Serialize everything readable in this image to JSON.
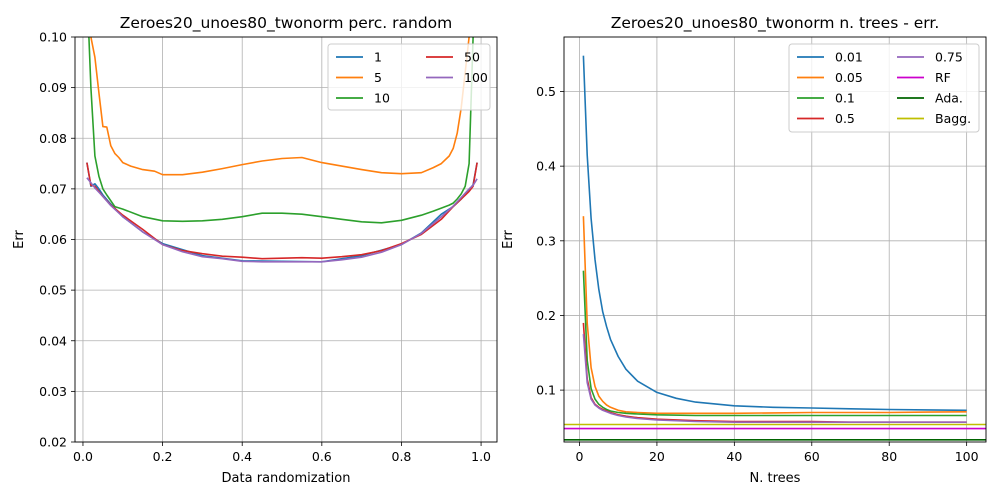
{
  "chart_data": [
    {
      "type": "line",
      "title": "Zeroes20_unoes80_twonorm perc. random",
      "xlabel": "Data randomization",
      "ylabel": "Err",
      "xlim": [
        -0.02,
        1.04
      ],
      "ylim": [
        0.02,
        0.1
      ],
      "xticks": [
        0.0,
        0.2,
        0.4,
        0.6,
        0.8,
        1.0
      ],
      "xtick_labels": [
        "0.0",
        "0.2",
        "0.4",
        "0.6",
        "0.8",
        "1.0"
      ],
      "yticks": [
        0.02,
        0.03,
        0.04,
        0.05,
        0.06,
        0.07,
        0.08,
        0.09,
        0.1
      ],
      "ytick_labels": [
        "0.02",
        "0.03",
        "0.04",
        "0.05",
        "0.06",
        "0.07",
        "0.08",
        "0.09",
        "0.10"
      ],
      "grid": true,
      "legend_position": "top-right",
      "legend_columns": 2,
      "series": [
        {
          "name": "1",
          "color": "#1f77b4",
          "x": [
            0.01,
            0.02,
            0.03,
            0.04,
            0.05,
            0.07,
            0.1,
            0.15,
            0.2,
            0.3,
            0.4,
            0.5,
            0.6,
            0.7,
            0.8,
            0.85,
            0.9,
            0.93,
            0.95,
            0.97,
            0.98,
            0.99
          ],
          "y": [
            0.0752,
            0.0705,
            0.071,
            0.07,
            0.0688,
            0.067,
            0.0645,
            0.0615,
            0.0592,
            0.0568,
            0.0558,
            0.0557,
            0.0556,
            0.0568,
            0.059,
            0.0613,
            0.065,
            0.0665,
            0.068,
            0.0698,
            0.0708,
            0.0752
          ]
        },
        {
          "name": "5",
          "color": "#ff7f0e",
          "x": [
            0.02,
            0.03,
            0.04,
            0.05,
            0.06,
            0.07,
            0.08,
            0.09,
            0.1,
            0.12,
            0.15,
            0.18,
            0.2,
            0.25,
            0.3,
            0.35,
            0.4,
            0.45,
            0.5,
            0.55,
            0.6,
            0.65,
            0.7,
            0.75,
            0.8,
            0.85,
            0.88,
            0.9,
            0.92,
            0.93,
            0.94,
            0.95,
            0.96,
            0.97
          ],
          "y": [
            0.1,
            0.096,
            0.089,
            0.0823,
            0.0822,
            0.0785,
            0.077,
            0.0762,
            0.0752,
            0.0745,
            0.0738,
            0.0735,
            0.0728,
            0.0728,
            0.0733,
            0.074,
            0.0748,
            0.0755,
            0.076,
            0.0762,
            0.0752,
            0.0745,
            0.0738,
            0.0732,
            0.073,
            0.0732,
            0.0742,
            0.075,
            0.0765,
            0.078,
            0.081,
            0.086,
            0.093,
            0.1
          ]
        },
        {
          "name": "10",
          "color": "#2ca02c",
          "x": [
            0.015,
            0.02,
            0.03,
            0.04,
            0.05,
            0.06,
            0.08,
            0.1,
            0.15,
            0.2,
            0.25,
            0.3,
            0.35,
            0.4,
            0.45,
            0.5,
            0.55,
            0.6,
            0.65,
            0.7,
            0.75,
            0.8,
            0.85,
            0.88,
            0.9,
            0.92,
            0.93,
            0.94,
            0.95,
            0.96,
            0.97,
            0.98
          ],
          "y": [
            0.1,
            0.09,
            0.0765,
            0.0725,
            0.07,
            0.0688,
            0.0665,
            0.066,
            0.0645,
            0.0637,
            0.0636,
            0.0637,
            0.064,
            0.0645,
            0.0652,
            0.0652,
            0.065,
            0.0645,
            0.064,
            0.0635,
            0.0633,
            0.0638,
            0.0648,
            0.0656,
            0.0662,
            0.0668,
            0.0672,
            0.068,
            0.069,
            0.0705,
            0.075,
            0.1
          ]
        },
        {
          "name": "50",
          "color": "#d62728",
          "x": [
            0.01,
            0.02,
            0.03,
            0.05,
            0.07,
            0.1,
            0.15,
            0.2,
            0.25,
            0.3,
            0.35,
            0.4,
            0.45,
            0.5,
            0.55,
            0.6,
            0.65,
            0.7,
            0.75,
            0.8,
            0.85,
            0.9,
            0.93,
            0.95,
            0.97,
            0.98,
            0.99
          ],
          "y": [
            0.0752,
            0.0707,
            0.0705,
            0.0685,
            0.0668,
            0.0648,
            0.062,
            0.059,
            0.0578,
            0.0572,
            0.0567,
            0.0565,
            0.0562,
            0.0563,
            0.0564,
            0.0563,
            0.0566,
            0.057,
            0.0578,
            0.0592,
            0.061,
            0.064,
            0.0665,
            0.068,
            0.0695,
            0.0705,
            0.0752
          ]
        },
        {
          "name": "100",
          "color": "#9467bd",
          "x": [
            0.01,
            0.02,
            0.03,
            0.05,
            0.07,
            0.1,
            0.15,
            0.2,
            0.25,
            0.3,
            0.35,
            0.4,
            0.45,
            0.5,
            0.55,
            0.6,
            0.65,
            0.7,
            0.75,
            0.8,
            0.85,
            0.9,
            0.93,
            0.95,
            0.97,
            0.98,
            0.99
          ],
          "y": [
            0.0722,
            0.0712,
            0.0702,
            0.0685,
            0.0667,
            0.0645,
            0.0615,
            0.059,
            0.0576,
            0.0566,
            0.0562,
            0.0557,
            0.0556,
            0.0556,
            0.0556,
            0.0556,
            0.056,
            0.0565,
            0.0575,
            0.059,
            0.0612,
            0.0645,
            0.0666,
            0.0683,
            0.07,
            0.0707,
            0.072
          ]
        }
      ]
    },
    {
      "type": "line",
      "title": "Zeroes20_unoes80_twonorm n. trees - err.",
      "xlabel": "N. trees",
      "ylabel": "Err",
      "xlim": [
        -4.0,
        105.0
      ],
      "ylim": [
        0.0305,
        0.573
      ],
      "xticks": [
        0,
        20,
        40,
        60,
        80,
        100
      ],
      "xtick_labels": [
        "0",
        "20",
        "40",
        "60",
        "80",
        "100"
      ],
      "yticks": [
        0.1,
        0.2,
        0.3,
        0.4,
        0.5
      ],
      "ytick_labels": [
        "0.1",
        "0.2",
        "0.3",
        "0.4",
        "0.5"
      ],
      "grid": true,
      "legend_position": "top-right",
      "legend_columns": 2,
      "series": [
        {
          "name": "0.01",
          "color": "#1f77b4",
          "x": [
            1,
            2,
            3,
            4,
            5,
            6,
            7,
            8,
            10,
            12,
            15,
            20,
            25,
            30,
            40,
            50,
            60,
            70,
            80,
            90,
            100
          ],
          "y": [
            0.548,
            0.415,
            0.33,
            0.275,
            0.235,
            0.205,
            0.185,
            0.168,
            0.145,
            0.128,
            0.112,
            0.097,
            0.089,
            0.084,
            0.079,
            0.077,
            0.076,
            0.075,
            0.074,
            0.0735,
            0.073
          ]
        },
        {
          "name": "0.05",
          "color": "#ff7f0e",
          "x": [
            1,
            2,
            3,
            4,
            5,
            6,
            7,
            8,
            10,
            12,
            15,
            20,
            30,
            40,
            50,
            60,
            70,
            80,
            90,
            100
          ],
          "y": [
            0.333,
            0.19,
            0.13,
            0.105,
            0.092,
            0.085,
            0.08,
            0.077,
            0.073,
            0.071,
            0.07,
            0.069,
            0.069,
            0.069,
            0.0695,
            0.07,
            0.07,
            0.07,
            0.0705,
            0.071
          ]
        },
        {
          "name": "0.1",
          "color": "#2ca02c",
          "x": [
            1,
            2,
            3,
            4,
            5,
            6,
            7,
            8,
            10,
            12,
            15,
            20,
            30,
            40,
            50,
            60,
            70,
            80,
            90,
            100
          ],
          "y": [
            0.26,
            0.14,
            0.102,
            0.088,
            0.081,
            0.077,
            0.074,
            0.072,
            0.07,
            0.069,
            0.068,
            0.067,
            0.066,
            0.066,
            0.066,
            0.066,
            0.066,
            0.066,
            0.066,
            0.066
          ]
        },
        {
          "name": "0.5",
          "color": "#d62728",
          "x": [
            1,
            2,
            3,
            4,
            5,
            6,
            7,
            8,
            10,
            12,
            15,
            20,
            30,
            40,
            50,
            60,
            70,
            80,
            90,
            100
          ],
          "y": [
            0.19,
            0.115,
            0.09,
            0.081,
            0.077,
            0.074,
            0.072,
            0.07,
            0.067,
            0.065,
            0.063,
            0.061,
            0.059,
            0.058,
            0.058,
            0.058,
            0.057,
            0.057,
            0.057,
            0.057
          ]
        },
        {
          "name": "0.75",
          "color": "#9467bd",
          "x": [
            1,
            2,
            3,
            4,
            5,
            6,
            7,
            8,
            10,
            12,
            15,
            20,
            30,
            40,
            50,
            60,
            70,
            80,
            90,
            100
          ],
          "y": [
            0.175,
            0.11,
            0.088,
            0.08,
            0.076,
            0.073,
            0.071,
            0.069,
            0.066,
            0.064,
            0.062,
            0.06,
            0.058,
            0.057,
            0.057,
            0.057,
            0.057,
            0.057,
            0.057,
            0.057
          ]
        },
        {
          "name": "RF",
          "color": "#cc00cc",
          "x": [
            -4,
            105
          ],
          "y": [
            0.0485,
            0.0485
          ]
        },
        {
          "name": "Ada.",
          "color": "#006400",
          "x": [
            -4,
            105
          ],
          "y": [
            0.0335,
            0.0335
          ]
        },
        {
          "name": "Bagg.",
          "color": "#bfbf00",
          "x": [
            -4,
            105
          ],
          "y": [
            0.054,
            0.054
          ]
        }
      ]
    }
  ]
}
